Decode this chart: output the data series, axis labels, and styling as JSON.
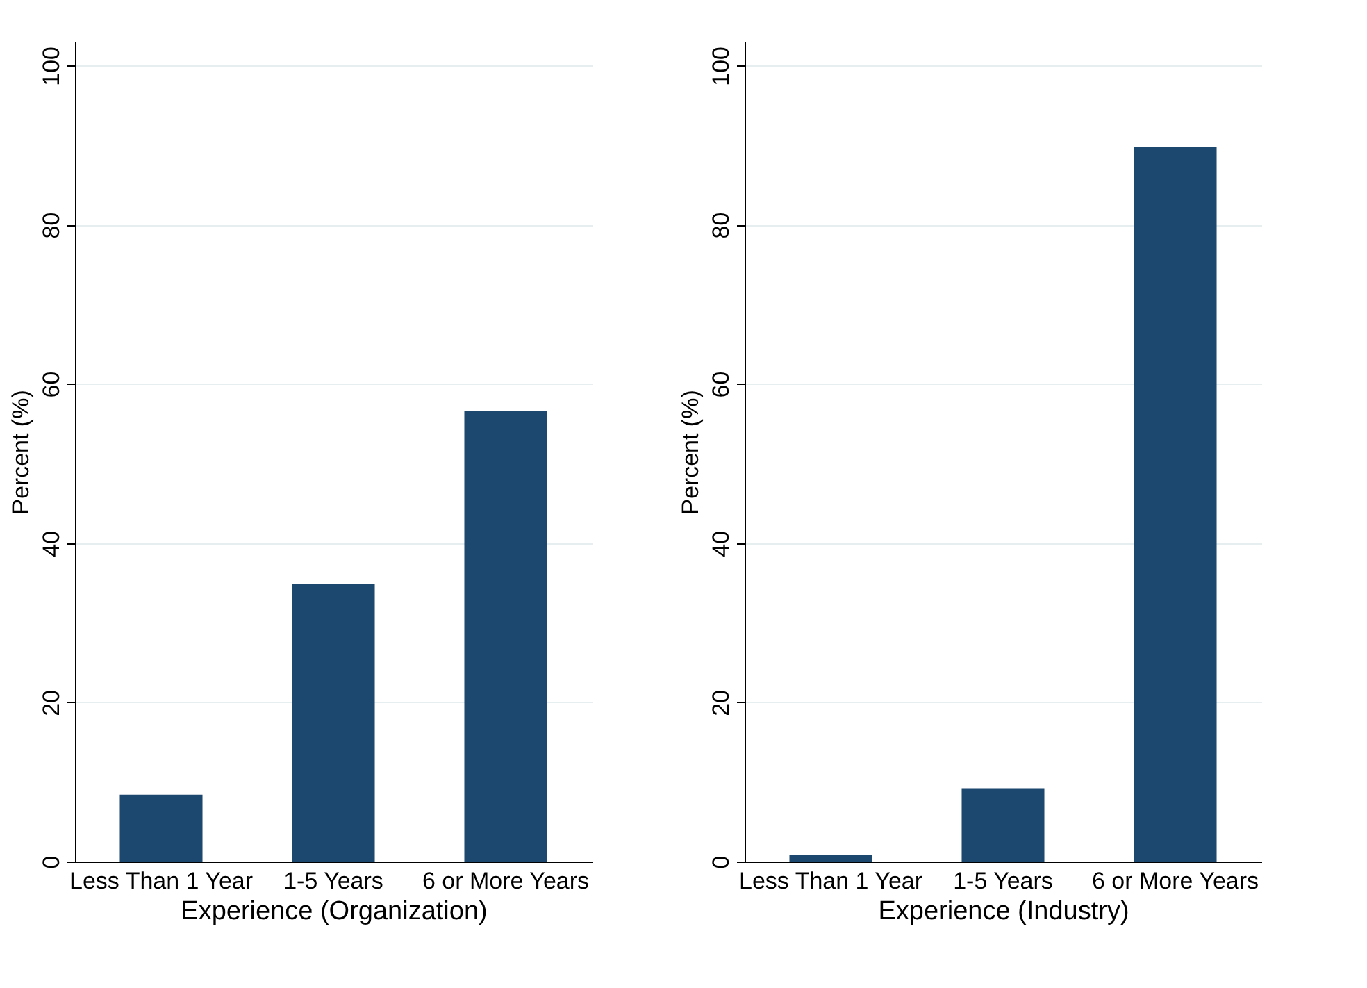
{
  "chart_data": [
    {
      "type": "bar",
      "xlabel": "Experience (Organization)",
      "ylabel": "Percent (%)",
      "categories": [
        "Less Than 1 Year",
        "1-5 Years",
        "6 or More Years"
      ],
      "values": [
        8.4,
        34.9,
        56.6
      ],
      "color": "#1c476f",
      "ylim": [
        0,
        103
      ],
      "yticks": [
        0,
        20,
        40,
        60,
        80,
        100
      ],
      "grid": "y"
    },
    {
      "type": "bar",
      "xlabel": "Experience (Industry)",
      "ylabel": "Percent (%)",
      "categories": [
        "Less Than 1 Year",
        "1-5 Years",
        "6 or More Years"
      ],
      "values": [
        0.8,
        9.2,
        89.8
      ],
      "color": "#1c476f",
      "ylim": [
        0,
        103
      ],
      "yticks": [
        0,
        20,
        40,
        60,
        80,
        100
      ],
      "grid": "y"
    }
  ]
}
